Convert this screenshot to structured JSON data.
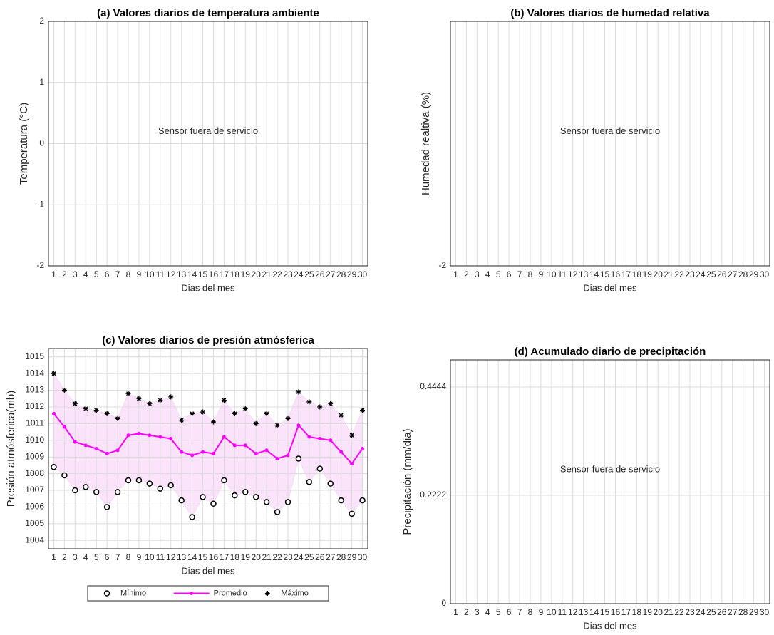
{
  "chart_data": [
    {
      "type": "line",
      "title": "(a) Valores diarios de temperatura ambiente",
      "x_label": "Dias del mes",
      "y_label": "Temperatura (°C)",
      "annotation": "Sensor fuera de servicio",
      "xlim": [
        0.5,
        30.5
      ],
      "xticks": [
        1,
        2,
        3,
        4,
        5,
        6,
        7,
        8,
        9,
        10,
        11,
        12,
        13,
        14,
        15,
        16,
        17,
        18,
        19,
        20,
        21,
        22,
        23,
        24,
        25,
        26,
        27,
        28,
        29,
        30
      ],
      "ylim": [
        -2,
        2
      ],
      "yticks": [
        -2,
        -1,
        0,
        1,
        2
      ],
      "grid": true
    },
    {
      "type": "line",
      "title": "(b) Valores diarios de humedad relativa",
      "x_label": "Dias del mes",
      "y_label": "Humedad realtiva (%)",
      "annotation": "Sensor fuera de servicio",
      "xlim": [
        0.5,
        30.5
      ],
      "xticks": [
        1,
        2,
        3,
        4,
        5,
        6,
        7,
        8,
        9,
        10,
        11,
        12,
        13,
        14,
        15,
        16,
        17,
        18,
        19,
        20,
        21,
        22,
        23,
        24,
        25,
        26,
        27,
        28,
        29,
        30
      ],
      "ylim": [
        -2,
        2
      ],
      "yticks": [
        -2
      ],
      "grid": true
    },
    {
      "type": "line",
      "title": "(c) Valores diarios de presión atmósferica",
      "x_label": "Dias del mes",
      "y_label": "Presión atmósferica(mb)",
      "x": [
        1,
        2,
        3,
        4,
        5,
        6,
        7,
        8,
        9,
        10,
        11,
        12,
        13,
        14,
        15,
        16,
        17,
        18,
        19,
        20,
        21,
        22,
        23,
        24,
        25,
        26,
        27,
        28,
        29,
        30
      ],
      "xlim": [
        0.5,
        30.5
      ],
      "xticks": [
        1,
        2,
        3,
        4,
        5,
        6,
        7,
        8,
        9,
        10,
        11,
        12,
        13,
        14,
        15,
        16,
        17,
        18,
        19,
        20,
        21,
        22,
        23,
        24,
        25,
        26,
        27,
        28,
        29,
        30
      ],
      "ylim": [
        1003.5,
        1015.5
      ],
      "yticks": [
        1004,
        1005,
        1006,
        1007,
        1008,
        1009,
        1010,
        1011,
        1012,
        1013,
        1014,
        1015
      ],
      "grid": true,
      "band_color": "#fbe4fb",
      "legend": "below",
      "series": [
        {
          "name": "Mínimo",
          "color": "#000000",
          "marker": "circle",
          "line": false,
          "values": [
            1008.4,
            1007.9,
            1007.0,
            1007.2,
            1006.9,
            1006.0,
            1006.9,
            1007.6,
            1007.6,
            1007.4,
            1007.1,
            1007.3,
            1006.4,
            1005.4,
            1006.6,
            1006.2,
            1007.6,
            1006.7,
            1006.9,
            1006.6,
            1006.3,
            1005.7,
            1006.3,
            1008.9,
            1007.5,
            1008.3,
            1007.4,
            1006.4,
            1005.6,
            1006.4
          ]
        },
        {
          "name": "Promedio",
          "color": "#ff00ff",
          "marker": "dot",
          "line": true,
          "values": [
            1011.6,
            1010.8,
            1009.9,
            1009.7,
            1009.5,
            1009.2,
            1009.4,
            1010.3,
            1010.4,
            1010.3,
            1010.2,
            1010.1,
            1009.3,
            1009.1,
            1009.3,
            1009.2,
            1010.2,
            1009.7,
            1009.7,
            1009.2,
            1009.4,
            1008.9,
            1009.1,
            1010.9,
            1010.2,
            1010.1,
            1010.0,
            1009.3,
            1008.6,
            1009.5
          ]
        },
        {
          "name": "Máximo",
          "color": "#000000",
          "marker": "asterisk",
          "line": false,
          "values": [
            1014.0,
            1013.0,
            1012.2,
            1011.9,
            1011.8,
            1011.6,
            1011.3,
            1012.8,
            1012.5,
            1012.2,
            1012.4,
            1012.6,
            1011.2,
            1011.6,
            1011.7,
            1011.1,
            1012.4,
            1011.6,
            1011.9,
            1011.0,
            1011.6,
            1010.9,
            1011.3,
            1012.9,
            1012.3,
            1012.0,
            1012.2,
            1011.5,
            1010.3,
            1011.8
          ]
        }
      ]
    },
    {
      "type": "line",
      "title": "(d) Acumulado diario de precipitación",
      "x_label": "Dias del mes",
      "y_label": "Precipitación (mm/dia)",
      "annotation": "Sensor fuera de servicio",
      "xlim": [
        0.5,
        30.5
      ],
      "xticks": [
        1,
        2,
        3,
        4,
        5,
        6,
        7,
        8,
        9,
        10,
        11,
        12,
        13,
        14,
        15,
        16,
        17,
        18,
        19,
        20,
        21,
        22,
        23,
        24,
        25,
        26,
        27,
        28,
        29,
        30
      ],
      "ylim": [
        0,
        0.5
      ],
      "yticks": [
        0,
        0.2222,
        0.4444
      ],
      "grid": true
    }
  ]
}
